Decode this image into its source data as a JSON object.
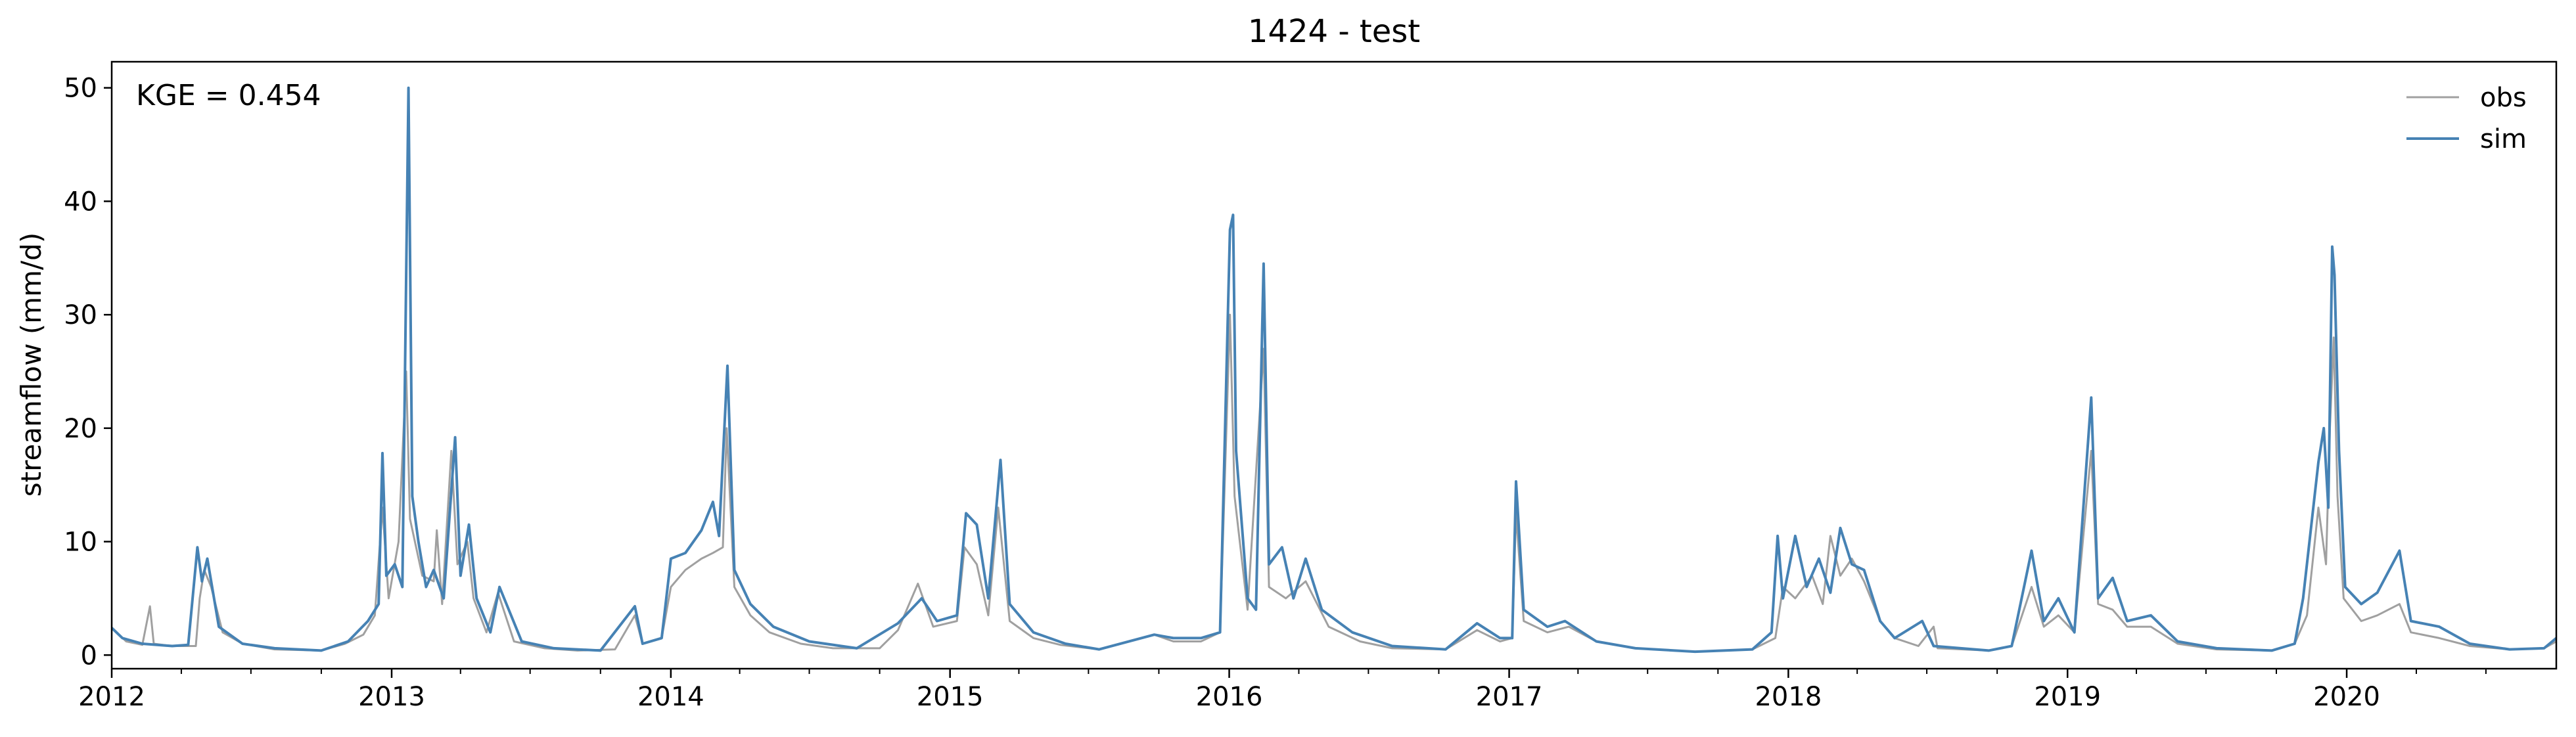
{
  "chart_data": {
    "type": "line",
    "title": "1424 - test",
    "xlabel": "",
    "ylabel": "streamflow (mm/d)",
    "annotation": "KGE = 0.454",
    "x_range": [
      "2012-01-01",
      "2020-10-01"
    ],
    "ylim": [
      -1.2,
      52.3
    ],
    "y_ticks": [
      0,
      10,
      20,
      30,
      40,
      50
    ],
    "x_ticks": [
      {
        "date": "2012-01-01",
        "label": "2012"
      },
      {
        "date": "2013-01-01",
        "label": "2013"
      },
      {
        "date": "2014-01-01",
        "label": "2014"
      },
      {
        "date": "2015-01-01",
        "label": "2015"
      },
      {
        "date": "2016-01-01",
        "label": "2016"
      },
      {
        "date": "2017-01-01",
        "label": "2017"
      },
      {
        "date": "2018-01-01",
        "label": "2018"
      },
      {
        "date": "2019-01-01",
        "label": "2019"
      },
      {
        "date": "2020-01-01",
        "label": "2020"
      }
    ],
    "grid": false,
    "legend_position": "top-right",
    "series": [
      {
        "name": "obs",
        "color": "#a0a0a0",
        "points": [
          [
            "2012-01-01",
            2.4
          ],
          [
            "2012-01-20",
            1.2
          ],
          [
            "2012-02-10",
            0.9
          ],
          [
            "2012-02-20",
            4.3
          ],
          [
            "2012-02-25",
            1.0
          ],
          [
            "2012-03-20",
            0.8
          ],
          [
            "2012-04-20",
            0.8
          ],
          [
            "2012-04-25",
            5.0
          ],
          [
            "2012-05-01",
            7.5
          ],
          [
            "2012-05-10",
            6.0
          ],
          [
            "2012-05-25",
            2.0
          ],
          [
            "2012-06-20",
            1.0
          ],
          [
            "2012-08-01",
            0.5
          ],
          [
            "2012-10-01",
            0.4
          ],
          [
            "2012-11-01",
            1.0
          ],
          [
            "2012-11-25",
            1.8
          ],
          [
            "2012-12-10",
            3.5
          ],
          [
            "2012-12-20",
            13.0
          ],
          [
            "2012-12-28",
            5.0
          ],
          [
            "2013-01-10",
            10.0
          ],
          [
            "2013-01-20",
            25.0
          ],
          [
            "2013-01-25",
            12.0
          ],
          [
            "2013-02-10",
            7.0
          ],
          [
            "2013-02-25",
            6.5
          ],
          [
            "2013-03-01",
            11.0
          ],
          [
            "2013-03-08",
            4.5
          ],
          [
            "2013-03-20",
            18.0
          ],
          [
            "2013-03-28",
            8.0
          ],
          [
            "2013-04-10",
            10.0
          ],
          [
            "2013-04-18",
            5.0
          ],
          [
            "2013-05-05",
            2.0
          ],
          [
            "2013-05-20",
            5.5
          ],
          [
            "2013-06-10",
            1.2
          ],
          [
            "2013-07-20",
            0.6
          ],
          [
            "2013-09-01",
            0.4
          ],
          [
            "2013-10-20",
            0.5
          ],
          [
            "2013-11-15",
            3.5
          ],
          [
            "2013-11-25",
            1.0
          ],
          [
            "2013-12-20",
            1.5
          ],
          [
            "2014-01-01",
            6.0
          ],
          [
            "2014-01-20",
            7.5
          ],
          [
            "2014-02-10",
            8.5
          ],
          [
            "2014-02-25",
            9.0
          ],
          [
            "2014-03-10",
            9.5
          ],
          [
            "2014-03-15",
            20.0
          ],
          [
            "2014-03-25",
            6.0
          ],
          [
            "2014-04-15",
            3.5
          ],
          [
            "2014-05-10",
            2.0
          ],
          [
            "2014-06-20",
            1.0
          ],
          [
            "2014-08-01",
            0.6
          ],
          [
            "2014-10-01",
            0.6
          ],
          [
            "2014-10-25",
            2.2
          ],
          [
            "2014-11-20",
            6.3
          ],
          [
            "2014-12-10",
            2.5
          ],
          [
            "2015-01-10",
            3.0
          ],
          [
            "2015-01-20",
            9.5
          ],
          [
            "2015-02-05",
            8.0
          ],
          [
            "2015-02-20",
            3.5
          ],
          [
            "2015-03-05",
            13.0
          ],
          [
            "2015-03-20",
            3.0
          ],
          [
            "2015-04-20",
            1.5
          ],
          [
            "2015-05-25",
            0.9
          ],
          [
            "2015-07-15",
            0.5
          ],
          [
            "2015-09-25",
            1.8
          ],
          [
            "2015-10-20",
            1.2
          ],
          [
            "2015-11-25",
            1.2
          ],
          [
            "2015-12-20",
            2.0
          ],
          [
            "2016-01-02",
            30.0
          ],
          [
            "2016-01-08",
            14.0
          ],
          [
            "2016-01-25",
            4.0
          ],
          [
            "2016-02-15",
            27.0
          ],
          [
            "2016-02-22",
            6.0
          ],
          [
            "2016-03-15",
            5.0
          ],
          [
            "2016-04-10",
            6.5
          ],
          [
            "2016-05-10",
            2.5
          ],
          [
            "2016-06-20",
            1.2
          ],
          [
            "2016-08-01",
            0.6
          ],
          [
            "2016-10-10",
            0.5
          ],
          [
            "2016-11-20",
            2.2
          ],
          [
            "2016-12-20",
            1.2
          ],
          [
            "2017-01-05",
            1.5
          ],
          [
            "2017-01-10",
            12.5
          ],
          [
            "2017-01-20",
            3.0
          ],
          [
            "2017-02-20",
            2.0
          ],
          [
            "2017-03-20",
            2.5
          ],
          [
            "2017-04-25",
            1.2
          ],
          [
            "2017-06-15",
            0.6
          ],
          [
            "2017-09-01",
            0.3
          ],
          [
            "2017-11-15",
            0.5
          ],
          [
            "2017-12-15",
            1.5
          ],
          [
            "2017-12-25",
            6.0
          ],
          [
            "2018-01-10",
            5.0
          ],
          [
            "2018-02-01",
            7.0
          ],
          [
            "2018-02-15",
            4.5
          ],
          [
            "2018-02-25",
            10.5
          ],
          [
            "2018-03-10",
            7.0
          ],
          [
            "2018-03-25",
            8.5
          ],
          [
            "2018-04-10",
            6.5
          ],
          [
            "2018-05-01",
            3.0
          ],
          [
            "2018-05-20",
            1.5
          ],
          [
            "2018-06-20",
            0.8
          ],
          [
            "2018-07-10",
            2.5
          ],
          [
            "2018-07-15",
            0.6
          ],
          [
            "2018-09-20",
            0.4
          ],
          [
            "2018-10-20",
            0.8
          ],
          [
            "2018-11-15",
            6.0
          ],
          [
            "2018-12-01",
            2.5
          ],
          [
            "2018-12-20",
            3.5
          ],
          [
            "2019-01-10",
            2.0
          ],
          [
            "2019-02-01",
            18.0
          ],
          [
            "2019-02-10",
            4.5
          ],
          [
            "2019-03-01",
            4.0
          ],
          [
            "2019-03-20",
            2.5
          ],
          [
            "2019-04-20",
            2.5
          ],
          [
            "2019-05-25",
            1.0
          ],
          [
            "2019-07-15",
            0.5
          ],
          [
            "2019-09-25",
            0.4
          ],
          [
            "2019-10-25",
            1.0
          ],
          [
            "2019-11-10",
            3.5
          ],
          [
            "2019-11-25",
            13.0
          ],
          [
            "2019-12-05",
            8.0
          ],
          [
            "2019-12-10",
            20.0
          ],
          [
            "2019-12-15",
            28.0
          ],
          [
            "2019-12-20",
            14.0
          ],
          [
            "2019-12-28",
            5.0
          ],
          [
            "2020-01-20",
            3.0
          ],
          [
            "2020-02-10",
            3.5
          ],
          [
            "2020-03-10",
            4.5
          ],
          [
            "2020-03-25",
            2.0
          ],
          [
            "2020-05-01",
            1.5
          ],
          [
            "2020-06-10",
            0.8
          ],
          [
            "2020-08-01",
            0.5
          ],
          [
            "2020-09-15",
            0.6
          ],
          [
            "2020-10-01",
            1.2
          ]
        ]
      },
      {
        "name": "sim",
        "color": "#4682b4",
        "points": [
          [
            "2012-01-01",
            2.4
          ],
          [
            "2012-01-15",
            1.5
          ],
          [
            "2012-02-10",
            1.0
          ],
          [
            "2012-03-20",
            0.8
          ],
          [
            "2012-04-10",
            0.9
          ],
          [
            "2012-04-22",
            9.5
          ],
          [
            "2012-04-28",
            6.5
          ],
          [
            "2012-05-05",
            8.5
          ],
          [
            "2012-05-20",
            2.5
          ],
          [
            "2012-06-20",
            1.0
          ],
          [
            "2012-08-01",
            0.6
          ],
          [
            "2012-10-01",
            0.4
          ],
          [
            "2012-11-05",
            1.2
          ],
          [
            "2012-12-01",
            3.0
          ],
          [
            "2012-12-15",
            4.5
          ],
          [
            "2012-12-20",
            17.8
          ],
          [
            "2012-12-25",
            7.0
          ],
          [
            "2013-01-05",
            8.0
          ],
          [
            "2013-01-15",
            6.0
          ],
          [
            "2013-01-23",
            50.0
          ],
          [
            "2013-01-28",
            14.0
          ],
          [
            "2013-02-05",
            10.0
          ],
          [
            "2013-02-15",
            6.0
          ],
          [
            "2013-02-25",
            7.5
          ],
          [
            "2013-03-10",
            5.0
          ],
          [
            "2013-03-25",
            19.2
          ],
          [
            "2013-04-01",
            7.0
          ],
          [
            "2013-04-12",
            11.5
          ],
          [
            "2013-04-22",
            5.0
          ],
          [
            "2013-05-10",
            2.0
          ],
          [
            "2013-05-22",
            6.0
          ],
          [
            "2013-06-20",
            1.2
          ],
          [
            "2013-08-01",
            0.6
          ],
          [
            "2013-10-01",
            0.4
          ],
          [
            "2013-11-15",
            4.3
          ],
          [
            "2013-11-25",
            1.0
          ],
          [
            "2013-12-20",
            1.5
          ],
          [
            "2014-01-01",
            8.5
          ],
          [
            "2014-01-20",
            9.0
          ],
          [
            "2014-02-10",
            11.0
          ],
          [
            "2014-02-25",
            13.5
          ],
          [
            "2014-03-05",
            10.5
          ],
          [
            "2014-03-16",
            25.5
          ],
          [
            "2014-03-25",
            7.5
          ],
          [
            "2014-04-15",
            4.5
          ],
          [
            "2014-05-15",
            2.5
          ],
          [
            "2014-07-01",
            1.2
          ],
          [
            "2014-09-01",
            0.6
          ],
          [
            "2014-10-25",
            2.8
          ],
          [
            "2014-11-25",
            5.0
          ],
          [
            "2014-12-15",
            3.0
          ],
          [
            "2015-01-10",
            3.5
          ],
          [
            "2015-01-22",
            12.5
          ],
          [
            "2015-02-05",
            11.5
          ],
          [
            "2015-02-20",
            5.0
          ],
          [
            "2015-03-08",
            17.2
          ],
          [
            "2015-03-20",
            4.5
          ],
          [
            "2015-04-20",
            2.0
          ],
          [
            "2015-06-01",
            1.0
          ],
          [
            "2015-07-15",
            0.5
          ],
          [
            "2015-09-25",
            1.8
          ],
          [
            "2015-10-20",
            1.5
          ],
          [
            "2015-11-25",
            1.5
          ],
          [
            "2015-12-20",
            2.0
          ],
          [
            "2016-01-02",
            37.5
          ],
          [
            "2016-01-06",
            38.8
          ],
          [
            "2016-01-10",
            18.0
          ],
          [
            "2016-01-25",
            5.0
          ],
          [
            "2016-02-05",
            4.0
          ],
          [
            "2016-02-15",
            34.5
          ],
          [
            "2016-02-22",
            8.0
          ],
          [
            "2016-03-10",
            9.5
          ],
          [
            "2016-03-25",
            5.0
          ],
          [
            "2016-04-10",
            8.5
          ],
          [
            "2016-05-01",
            4.0
          ],
          [
            "2016-06-10",
            2.0
          ],
          [
            "2016-08-01",
            0.8
          ],
          [
            "2016-10-10",
            0.5
          ],
          [
            "2016-11-20",
            2.8
          ],
          [
            "2016-12-20",
            1.5
          ],
          [
            "2017-01-05",
            1.5
          ],
          [
            "2017-01-10",
            15.3
          ],
          [
            "2017-01-20",
            4.0
          ],
          [
            "2017-02-20",
            2.5
          ],
          [
            "2017-03-15",
            3.0
          ],
          [
            "2017-04-25",
            1.2
          ],
          [
            "2017-06-15",
            0.6
          ],
          [
            "2017-09-01",
            0.3
          ],
          [
            "2017-11-15",
            0.5
          ],
          [
            "2017-12-10",
            2.0
          ],
          [
            "2017-12-18",
            10.5
          ],
          [
            "2017-12-25",
            5.0
          ],
          [
            "2018-01-10",
            10.5
          ],
          [
            "2018-01-25",
            6.0
          ],
          [
            "2018-02-10",
            8.5
          ],
          [
            "2018-02-25",
            5.5
          ],
          [
            "2018-03-10",
            11.2
          ],
          [
            "2018-03-25",
            8.0
          ],
          [
            "2018-04-10",
            7.5
          ],
          [
            "2018-05-01",
            3.0
          ],
          [
            "2018-05-20",
            1.5
          ],
          [
            "2018-06-25",
            3.0
          ],
          [
            "2018-07-10",
            0.8
          ],
          [
            "2018-09-20",
            0.4
          ],
          [
            "2018-10-20",
            0.8
          ],
          [
            "2018-11-15",
            9.2
          ],
          [
            "2018-12-01",
            3.0
          ],
          [
            "2018-12-20",
            5.0
          ],
          [
            "2019-01-10",
            2.0
          ],
          [
            "2019-02-01",
            22.7
          ],
          [
            "2019-02-10",
            5.0
          ],
          [
            "2019-03-01",
            6.8
          ],
          [
            "2019-03-20",
            3.0
          ],
          [
            "2019-04-20",
            3.5
          ],
          [
            "2019-05-25",
            1.2
          ],
          [
            "2019-07-15",
            0.6
          ],
          [
            "2019-09-25",
            0.4
          ],
          [
            "2019-10-25",
            1.0
          ],
          [
            "2019-11-05",
            5.0
          ],
          [
            "2019-11-25",
            17.0
          ],
          [
            "2019-12-02",
            20.0
          ],
          [
            "2019-12-08",
            13.0
          ],
          [
            "2019-12-13",
            36.0
          ],
          [
            "2019-12-16",
            33.5
          ],
          [
            "2019-12-22",
            18.0
          ],
          [
            "2019-12-30",
            6.0
          ],
          [
            "2020-01-20",
            4.5
          ],
          [
            "2020-02-10",
            5.5
          ],
          [
            "2020-03-10",
            9.2
          ],
          [
            "2020-03-25",
            3.0
          ],
          [
            "2020-05-01",
            2.5
          ],
          [
            "2020-06-10",
            1.0
          ],
          [
            "2020-08-01",
            0.5
          ],
          [
            "2020-09-15",
            0.6
          ],
          [
            "2020-10-01",
            1.5
          ]
        ]
      }
    ]
  }
}
